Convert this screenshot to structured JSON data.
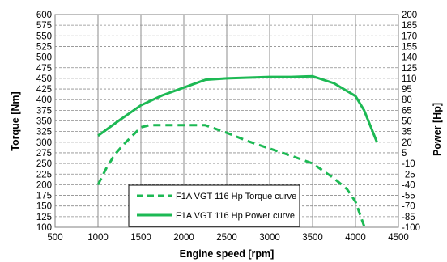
{
  "chart_data": {
    "type": "line",
    "xlabel": "Engine speed [rpm]",
    "ylabel_left": "Torque [Nm]",
    "ylabel_right": "Power [Hp]",
    "xlim": [
      500,
      4500
    ],
    "ylim_left": [
      100,
      600
    ],
    "ylim_right": [
      -100,
      200
    ],
    "x_ticks": [
      500,
      1000,
      1500,
      2000,
      2500,
      3000,
      3500,
      4000,
      4500
    ],
    "y_left_ticks": [
      100,
      125,
      150,
      175,
      200,
      225,
      250,
      275,
      300,
      325,
      350,
      375,
      400,
      425,
      450,
      475,
      500,
      525,
      550,
      575,
      600
    ],
    "y_right_ticks": [
      -100,
      -85,
      -70,
      -55,
      -40,
      -25,
      -10,
      5,
      20,
      35,
      50,
      65,
      80,
      95,
      110,
      125,
      140,
      155,
      170,
      185,
      200
    ],
    "grid": true,
    "legend_position": "bottom-center",
    "series": [
      {
        "name": "F1A VGT 116 Hp Torque curve",
        "axis": "left",
        "style": "dashed",
        "color": "#1db954",
        "x": [
          1000,
          1100,
          1200,
          1300,
          1400,
          1500,
          1600,
          1700,
          2000,
          2250,
          2500,
          2750,
          3000,
          3250,
          3500,
          3750,
          3900,
          4000,
          4100
        ],
        "y": [
          200,
          240,
          272,
          295,
          315,
          335,
          340,
          340,
          340,
          340,
          322,
          302,
          285,
          268,
          250,
          215,
          190,
          160,
          103
        ]
      },
      {
        "name": "F1A VGT 116 Hp Power curve",
        "axis": "right",
        "style": "solid",
        "color": "#1db954",
        "x": [
          1000,
          1250,
          1500,
          1750,
          2000,
          2250,
          2500,
          2750,
          3000,
          3250,
          3500,
          3750,
          4000,
          4100,
          4250
        ],
        "y": [
          29,
          51,
          72,
          86,
          97,
          108,
          110,
          111,
          112,
          112,
          113,
          103,
          85,
          65,
          20
        ]
      }
    ]
  }
}
